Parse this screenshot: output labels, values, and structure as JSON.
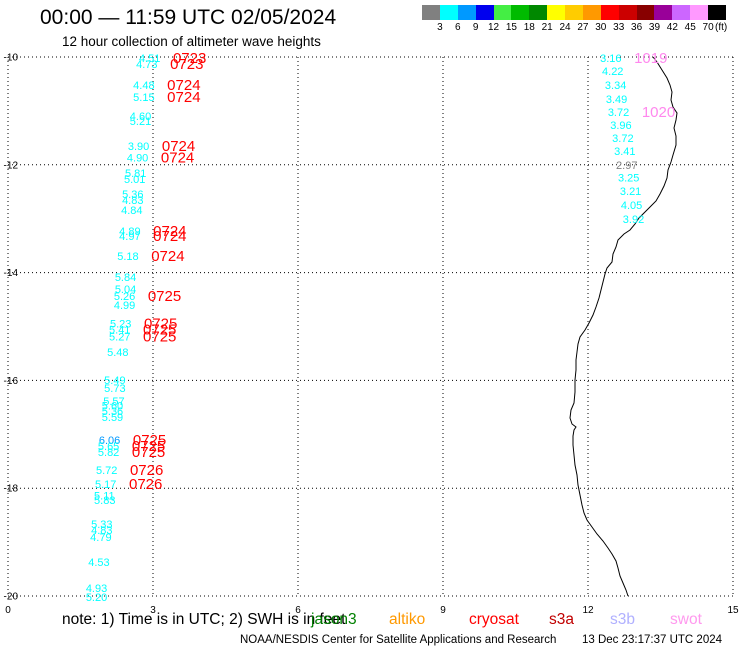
{
  "header": {
    "title": "00:00 — 11:59 UTC 02/05/2024",
    "subtitle": "12 hour collection of altimeter wave heights"
  },
  "legend": {
    "colors": [
      "#808080",
      "#00ffff",
      "#0099ff",
      "#0000ee",
      "#44ee44",
      "#00bb00",
      "#008800",
      "#ffff00",
      "#ffcc00",
      "#ff9900",
      "#ff0000",
      "#cc0000",
      "#880000",
      "#990099",
      "#cc66ff",
      "#ff99ff",
      "#000000"
    ],
    "labels": [
      "3",
      "6",
      "9",
      "12",
      "15",
      "18",
      "21",
      "24",
      "27",
      "30",
      "33",
      "36",
      "39",
      "42",
      "45",
      "70"
    ],
    "unit": "(ft)"
  },
  "map_data": {
    "type": "map",
    "x_axis": {
      "range": [
        0,
        15
      ],
      "ticks": [
        "0",
        "3",
        "6",
        "9",
        "12",
        "15"
      ]
    },
    "y_axis": {
      "range": [
        -10,
        -20
      ],
      "ticks": [
        "-10",
        "-12",
        "-14",
        "-16",
        "-18",
        "-20"
      ]
    },
    "grid": true,
    "tracks": [
      {
        "label_color": "#ff0000",
        "points": [
          {
            "lon": 2.71,
            "lat": -10.02,
            "swh": "4.51",
            "time": "0723"
          },
          {
            "lon": 2.65,
            "lat": -10.13,
            "swh": "4.73",
            "time": "0723"
          },
          {
            "lon": 2.59,
            "lat": -10.52,
            "swh": "4.48",
            "time": "0724"
          },
          {
            "lon": 2.59,
            "lat": -10.74,
            "swh": "5.15",
            "time": "0724"
          },
          {
            "lon": 2.52,
            "lat": -11.09,
            "swh": "4.60"
          },
          {
            "lon": 2.52,
            "lat": -11.19,
            "swh": "5.21"
          },
          {
            "lon": 2.48,
            "lat": -11.65,
            "swh": "3.90",
            "time": "0724"
          },
          {
            "lon": 2.46,
            "lat": -11.86,
            "swh": "4.90",
            "time": "0724"
          },
          {
            "lon": 2.42,
            "lat": -12.15,
            "swh": "5.81"
          },
          {
            "lon": 2.4,
            "lat": -12.26,
            "swh": "5.01"
          },
          {
            "lon": 2.36,
            "lat": -12.54,
            "swh": "5.36"
          },
          {
            "lon": 2.36,
            "lat": -12.65,
            "swh": "4.83"
          },
          {
            "lon": 2.34,
            "lat": -12.84,
            "swh": "4.84"
          },
          {
            "lon": 2.3,
            "lat": -13.23,
            "swh": "4.89",
            "time": "0724"
          },
          {
            "lon": 2.3,
            "lat": -13.32,
            "swh": "4.97",
            "time": "0724"
          },
          {
            "lon": 2.26,
            "lat": -13.69,
            "swh": "5.18",
            "time": "0724"
          },
          {
            "lon": 2.21,
            "lat": -14.08,
            "swh": "5.84"
          },
          {
            "lon": 2.21,
            "lat": -14.3,
            "swh": "5.04"
          },
          {
            "lon": 2.19,
            "lat": -14.43,
            "swh": "5.26",
            "time": "0725"
          },
          {
            "lon": 2.19,
            "lat": -14.6,
            "swh": "4.99"
          },
          {
            "lon": 2.11,
            "lat": -14.94,
            "swh": "5.23",
            "time": "0725"
          },
          {
            "lon": 2.09,
            "lat": -15.06,
            "swh": "5.41",
            "time": "0725"
          },
          {
            "lon": 2.09,
            "lat": -15.19,
            "swh": "5.27",
            "time": "0725"
          },
          {
            "lon": 2.05,
            "lat": -15.47,
            "swh": "5.48"
          },
          {
            "lon": 1.99,
            "lat": -15.99,
            "swh": "5.49"
          },
          {
            "lon": 1.99,
            "lat": -16.14,
            "swh": "5.73"
          },
          {
            "lon": 1.97,
            "lat": -16.38,
            "swh": "5.57"
          },
          {
            "lon": 1.94,
            "lat": -16.47,
            "swh": "5.60"
          },
          {
            "lon": 1.94,
            "lat": -16.57,
            "swh": "5.36"
          },
          {
            "lon": 1.94,
            "lat": -16.68,
            "swh": "5.59"
          },
          {
            "lon": 1.88,
            "lat": -17.11,
            "swh": "6.06",
            "time": "0725"
          },
          {
            "lon": 1.86,
            "lat": -17.22,
            "swh": "5.65",
            "time": "0725"
          },
          {
            "lon": 1.86,
            "lat": -17.33,
            "swh": "5.82",
            "time": "0725"
          },
          {
            "lon": 1.82,
            "lat": -17.66,
            "swh": "5.72",
            "time": "0726"
          },
          {
            "lon": 1.8,
            "lat": -17.92,
            "swh": "5.17",
            "time": "0726"
          },
          {
            "lon": 1.78,
            "lat": -18.14,
            "swh": "5.11"
          },
          {
            "lon": 1.78,
            "lat": -18.22,
            "swh": "5.83"
          },
          {
            "lon": 1.72,
            "lat": -18.66,
            "swh": "5.33"
          },
          {
            "lon": 1.72,
            "lat": -18.78,
            "swh": "4.83"
          },
          {
            "lon": 1.7,
            "lat": -18.91,
            "swh": "4.79"
          },
          {
            "lon": 1.66,
            "lat": -19.37,
            "swh": "4.53"
          },
          {
            "lon": 1.61,
            "lat": -19.85,
            "swh": "4.93"
          },
          {
            "lon": 1.61,
            "lat": -20.02,
            "swh": "5.20"
          }
        ]
      },
      {
        "label_color": "#ff88ee",
        "points": [
          {
            "lon": 12.25,
            "lat": -10.02,
            "swh": "3.16",
            "time": "1019"
          },
          {
            "lon": 12.29,
            "lat": -10.26,
            "swh": "4.22"
          },
          {
            "lon": 12.35,
            "lat": -10.52,
            "swh": "3.34"
          },
          {
            "lon": 12.37,
            "lat": -10.78,
            "swh": "3.49"
          },
          {
            "lon": 12.41,
            "lat": -11.02,
            "swh": "3.72",
            "time": "1020"
          },
          {
            "lon": 12.46,
            "lat": -11.26,
            "swh": "3.96"
          },
          {
            "lon": 12.5,
            "lat": -11.5,
            "swh": "3.72"
          },
          {
            "lon": 12.54,
            "lat": -11.74,
            "swh": "3.41"
          },
          {
            "lon": 12.58,
            "lat": -12.0,
            "swh": "2.97"
          },
          {
            "lon": 12.62,
            "lat": -12.24,
            "swh": "3.25"
          },
          {
            "lon": 12.66,
            "lat": -12.49,
            "swh": "3.21"
          },
          {
            "lon": 12.68,
            "lat": -12.75,
            "swh": "4.05"
          },
          {
            "lon": 12.72,
            "lat": -13.01,
            "swh": "3.92"
          }
        ]
      }
    ]
  },
  "note": "note: 1) Time is in UTC; 2) SWH is in feet",
  "satellites": [
    {
      "name": "jason3",
      "color": "#008000"
    },
    {
      "name": "altiko",
      "color": "#ff9900"
    },
    {
      "name": "cryosat",
      "color": "#ff0000"
    },
    {
      "name": "s3a",
      "color": "#c00000"
    },
    {
      "name": "s3b",
      "color": "#b0b0ff"
    },
    {
      "name": "swot",
      "color": "#ff99ee"
    }
  ],
  "footer": {
    "credit": "NOAA/NESDIS Center for Satellite Applications and Research",
    "timestamp": "13 Dec 23:17:37 UTC 2024"
  }
}
